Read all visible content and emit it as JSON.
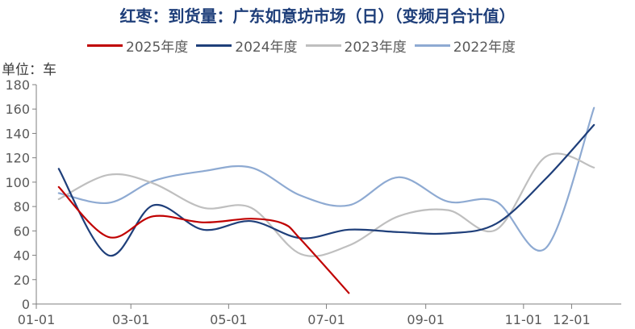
{
  "chart_data": {
    "type": "line",
    "title": "红枣：到货量：广东如意坊市场（日）（变频月合计值）",
    "ylabel": "单位：车",
    "xlabel": "",
    "ylim": [
      0,
      180
    ],
    "y_ticks": [
      "0",
      "20",
      "40",
      "60",
      "80",
      "100",
      "120",
      "140",
      "160",
      "180"
    ],
    "x_tick_labels": [
      "01-01",
      "03-01",
      "05-01",
      "07-01",
      "09-01",
      "11-01",
      "12-01"
    ],
    "x_tick_days": [
      1,
      60,
      121,
      182,
      244,
      305,
      335
    ],
    "legend_position": "top",
    "grid": false,
    "series": [
      {
        "name": "2025年度",
        "color": "#c00000",
        "points": [
          [
            15,
            96
          ],
          [
            46,
            55
          ],
          [
            74,
            72
          ],
          [
            105,
            67
          ],
          [
            135,
            70
          ],
          [
            155,
            66
          ],
          [
            166,
            53
          ],
          [
            196,
            9
          ]
        ]
      },
      {
        "name": "2024年度",
        "color": "#1f3f7a",
        "points": [
          [
            15,
            111
          ],
          [
            46,
            40
          ],
          [
            74,
            81
          ],
          [
            105,
            61
          ],
          [
            135,
            68
          ],
          [
            166,
            54
          ],
          [
            196,
            61
          ],
          [
            227,
            59
          ],
          [
            258,
            58
          ],
          [
            288,
            66
          ],
          [
            319,
            103
          ],
          [
            349,
            147
          ]
        ]
      },
      {
        "name": "2023年度",
        "color": "#bfbfbf",
        "points": [
          [
            15,
            86
          ],
          [
            46,
            106
          ],
          [
            74,
            99
          ],
          [
            105,
            79
          ],
          [
            135,
            79
          ],
          [
            166,
            41
          ],
          [
            196,
            48
          ],
          [
            227,
            72
          ],
          [
            258,
            77
          ],
          [
            288,
            61
          ],
          [
            319,
            121
          ],
          [
            349,
            112
          ]
        ]
      },
      {
        "name": "2022年度",
        "color": "#8eaad2",
        "points": [
          [
            15,
            91
          ],
          [
            46,
            83
          ],
          [
            74,
            101
          ],
          [
            105,
            109
          ],
          [
            135,
            112
          ],
          [
            166,
            89
          ],
          [
            196,
            81
          ],
          [
            227,
            104
          ],
          [
            258,
            84
          ],
          [
            288,
            84
          ],
          [
            319,
            46
          ],
          [
            349,
            161
          ]
        ]
      }
    ]
  }
}
